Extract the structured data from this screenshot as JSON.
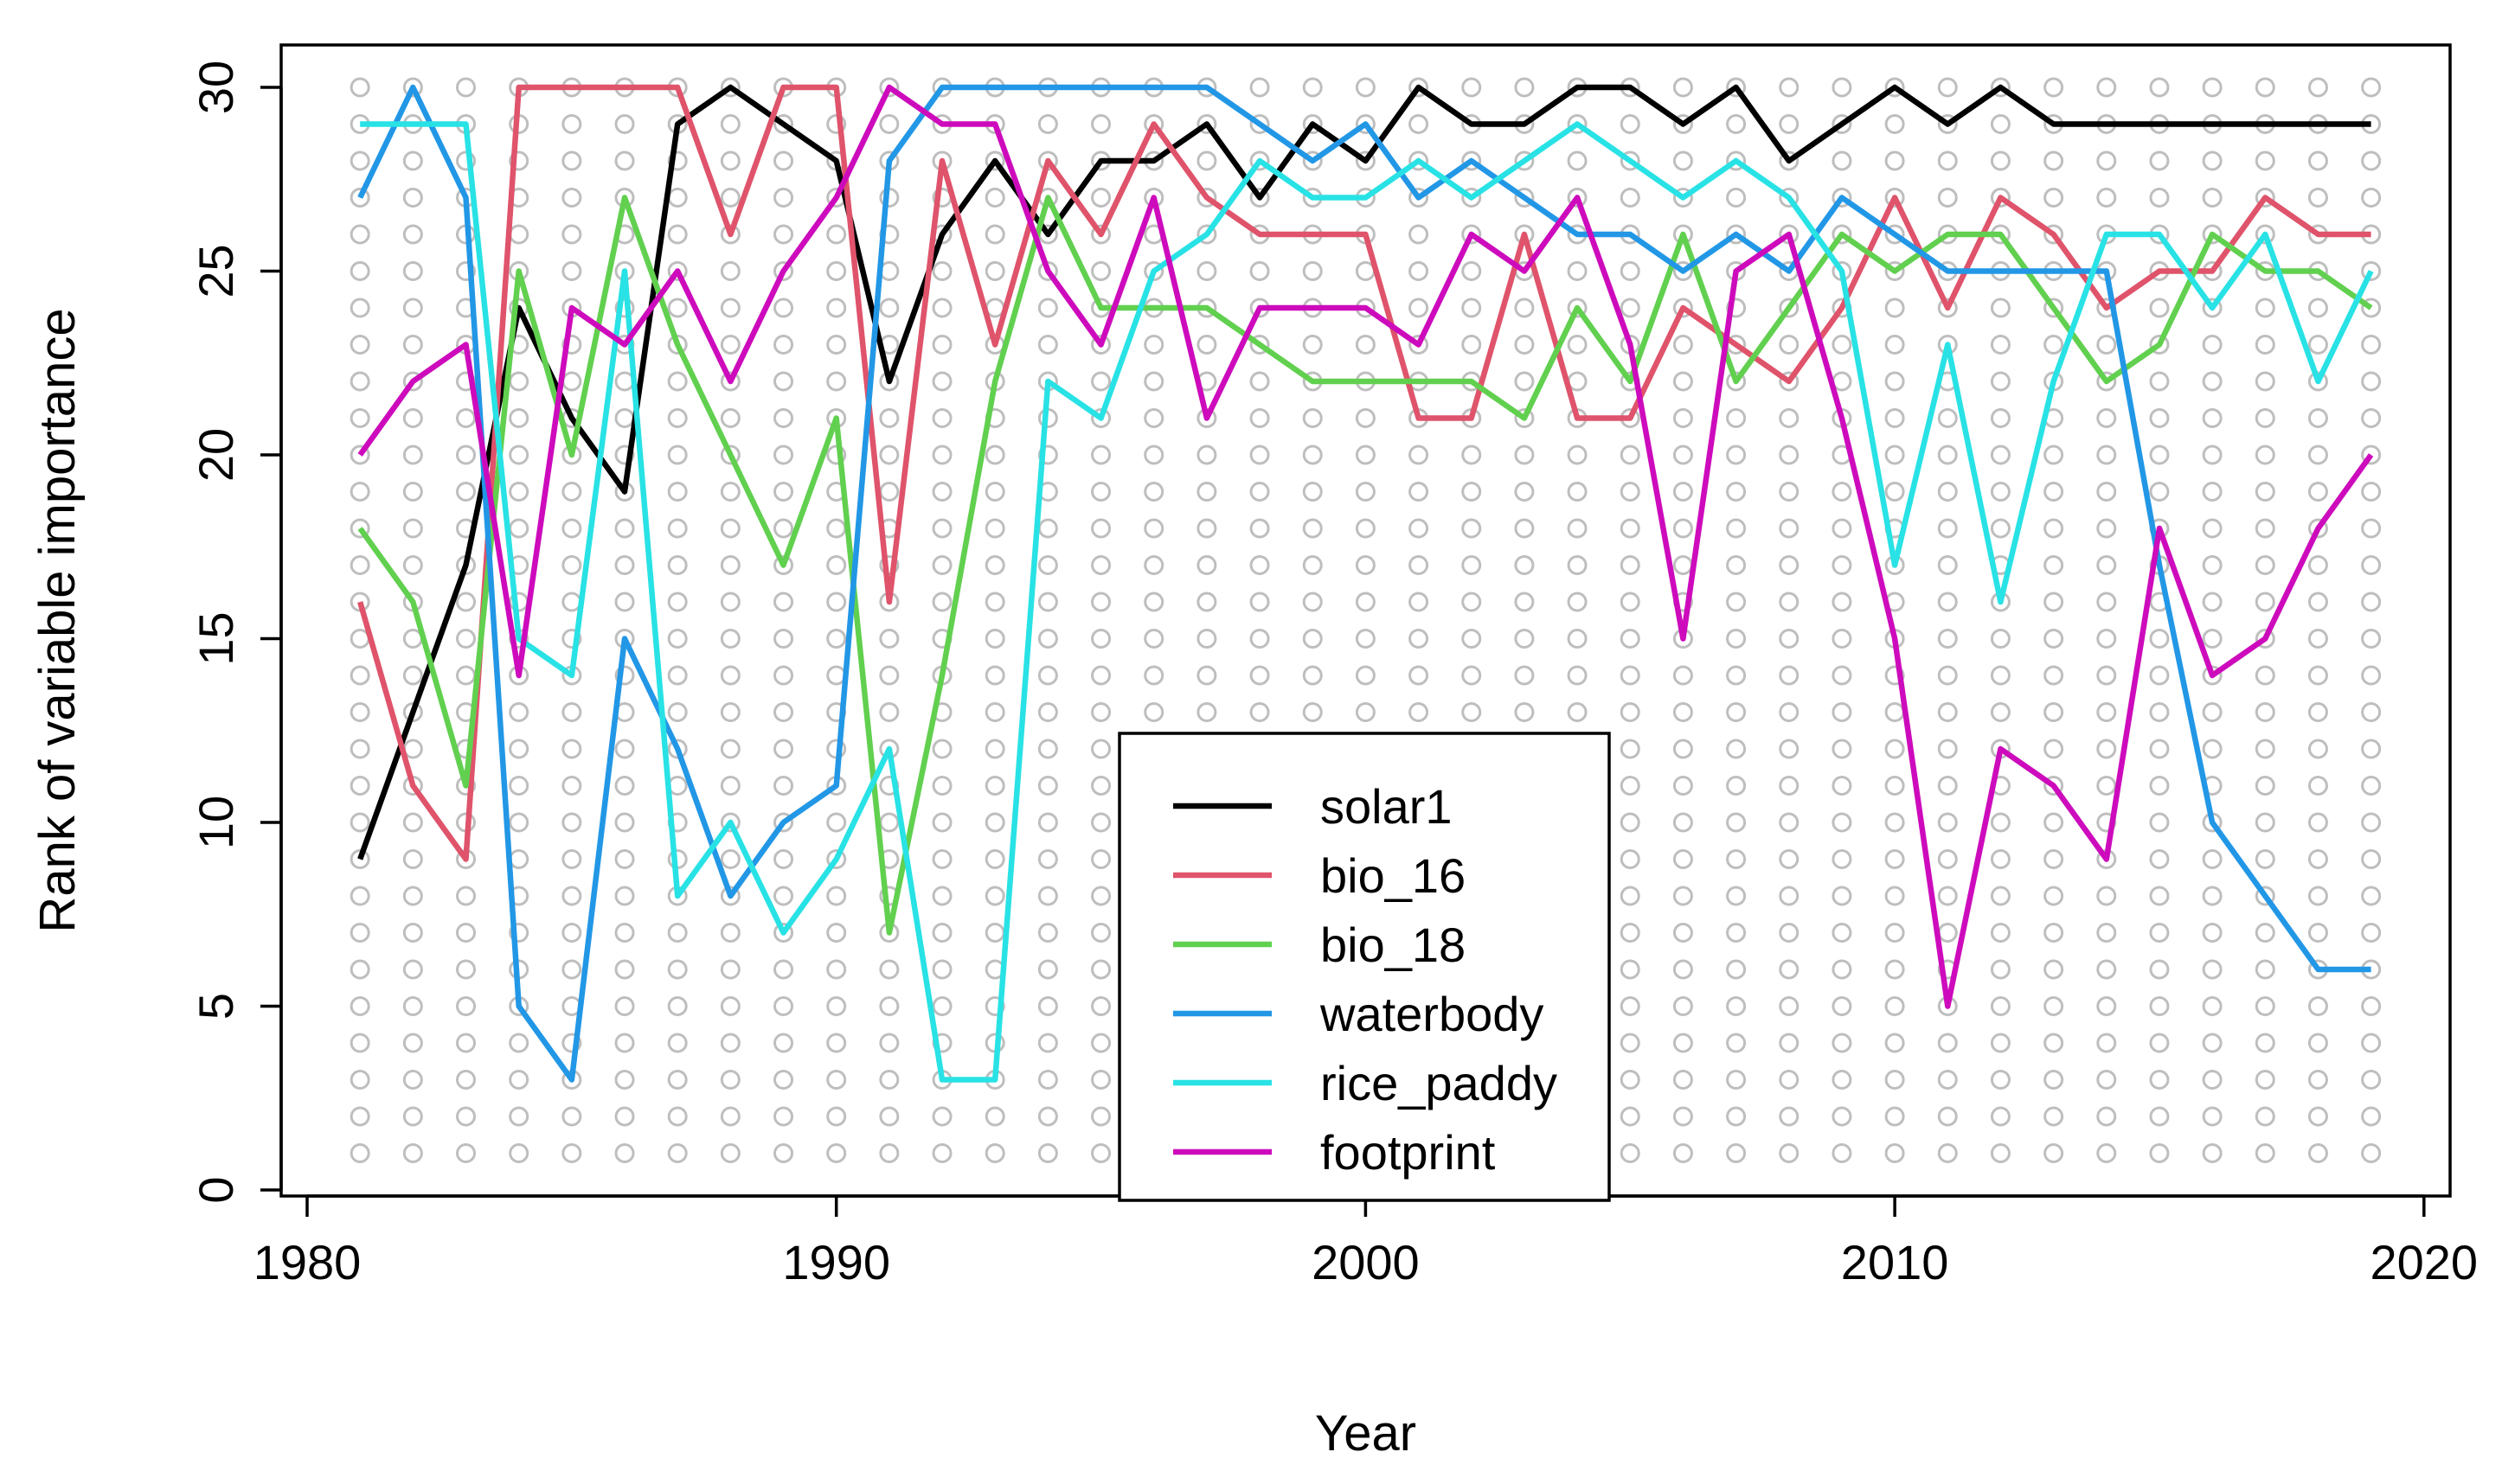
{
  "chart_data": {
    "type": "line",
    "title": "",
    "xlabel": "Year",
    "ylabel": "Rank of variable importance",
    "xlim": [
      1980,
      2020
    ],
    "ylim": [
      0,
      30
    ],
    "xticks": [
      1980,
      1990,
      2000,
      2010,
      2020
    ],
    "yticks": [
      0,
      5,
      10,
      15,
      20,
      25,
      30
    ],
    "legend_position": "bottom-center",
    "background_points": {
      "x_from": 1981,
      "x_to": 2019,
      "y_from": 1,
      "y_to": 30,
      "color": "#bebebe"
    },
    "x": [
      1981,
      1982,
      1983,
      1984,
      1985,
      1986,
      1987,
      1988,
      1989,
      1990,
      1991,
      1992,
      1993,
      1994,
      1995,
      1996,
      1997,
      1998,
      1999,
      2000,
      2001,
      2002,
      2003,
      2004,
      2005,
      2006,
      2007,
      2008,
      2009,
      2010,
      2011,
      2012,
      2013,
      2014,
      2015,
      2016,
      2017,
      2018,
      2019
    ],
    "series": [
      {
        "name": "solar1",
        "color": "#000000",
        "values": [
          9,
          13,
          17,
          24,
          21,
          19,
          29,
          30,
          29,
          28,
          22,
          26,
          28,
          26,
          28,
          28,
          29,
          27,
          29,
          28,
          30,
          29,
          29,
          30,
          30,
          29,
          30,
          28,
          29,
          30,
          29,
          30,
          29,
          29,
          29,
          29,
          29,
          29,
          29
        ]
      },
      {
        "name": "bio_16",
        "color": "#DF536B",
        "values": [
          16,
          11,
          9,
          30,
          30,
          30,
          30,
          26,
          30,
          30,
          16,
          28,
          23,
          28,
          26,
          29,
          27,
          26,
          26,
          26,
          21,
          21,
          26,
          21,
          21,
          24,
          23,
          22,
          24,
          27,
          24,
          27,
          26,
          24,
          25,
          25,
          27,
          26,
          26
        ]
      },
      {
        "name": "bio_18",
        "color": "#61D04F",
        "values": [
          18,
          16,
          11,
          25,
          20,
          27,
          23,
          20,
          17,
          21,
          7,
          14,
          22,
          27,
          24,
          24,
          24,
          23,
          22,
          22,
          22,
          22,
          21,
          24,
          22,
          26,
          22,
          24,
          26,
          25,
          26,
          26,
          24,
          22,
          23,
          26,
          25,
          25,
          24
        ]
      },
      {
        "name": "waterbody",
        "color": "#2297E6",
        "values": [
          27,
          30,
          27,
          5,
          3,
          15,
          12,
          8,
          10,
          11,
          28,
          30,
          30,
          30,
          30,
          30,
          30,
          29,
          28,
          29,
          27,
          28,
          27,
          26,
          26,
          25,
          26,
          25,
          27,
          26,
          25,
          25,
          25,
          25,
          17,
          10,
          8,
          6,
          6
        ]
      },
      {
        "name": "rice_paddy",
        "color": "#28E2E5",
        "values": [
          29,
          29,
          29,
          15,
          14,
          25,
          8,
          10,
          7,
          9,
          12,
          3,
          3,
          22,
          21,
          25,
          26,
          28,
          27,
          27,
          28,
          27,
          28,
          29,
          28,
          27,
          28,
          27,
          25,
          17,
          23,
          16,
          22,
          26,
          26,
          24,
          26,
          22,
          25
        ]
      },
      {
        "name": "footprint",
        "color": "#CD0BBC",
        "values": [
          20,
          22,
          23,
          14,
          24,
          23,
          25,
          22,
          25,
          27,
          30,
          29,
          29,
          25,
          23,
          27,
          21,
          24,
          24,
          24,
          23,
          26,
          25,
          27,
          23,
          15,
          25,
          26,
          21,
          15,
          5,
          12,
          11,
          9,
          18,
          14,
          15,
          18,
          20
        ]
      }
    ]
  }
}
